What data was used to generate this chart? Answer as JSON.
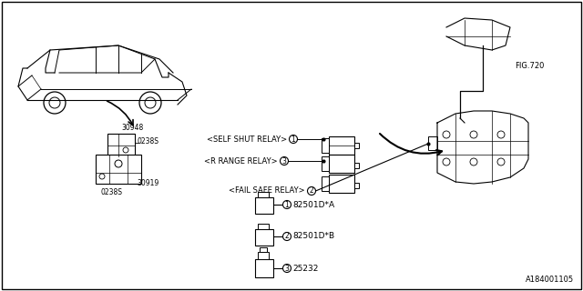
{
  "background_color": "#ffffff",
  "border_color": "#000000",
  "title": "",
  "diagram_id": "A184001105",
  "fig_ref": "FIG.720",
  "labels": {
    "self_shut_relay": "<SELF SHUT RELAY>",
    "r_range_relay": "<R RANGE RELAY>",
    "fail_safe_relay": "<FAIL SAFE RELAY>",
    "part1": "82501D*A",
    "part2": "82501D*B",
    "part3": "25232",
    "part_30948": "30948",
    "part_30919": "30919",
    "part_0238S_top": "0238S",
    "part_0238S_bot": "0238S"
  },
  "circle_numbers": {
    "self_shut": "1",
    "fail_safe": "2",
    "r_range": "3",
    "p1": "1",
    "p2": "2",
    "p3": "3"
  },
  "text_color": "#000000",
  "line_color": "#000000",
  "font_size_label": 6.5,
  "font_size_small": 5.5,
  "font_size_id": 6
}
